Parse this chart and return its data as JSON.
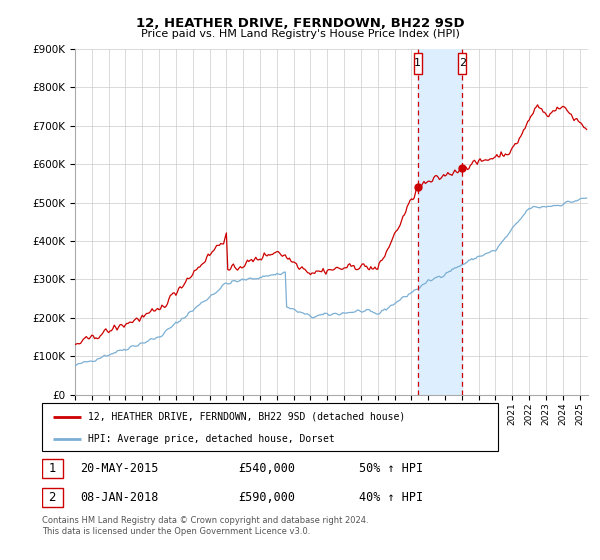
{
  "title": "12, HEATHER DRIVE, FERNDOWN, BH22 9SD",
  "subtitle": "Price paid vs. HM Land Registry's House Price Index (HPI)",
  "ylim": [
    0,
    900000
  ],
  "yticks": [
    0,
    100000,
    200000,
    300000,
    400000,
    500000,
    600000,
    700000,
    800000,
    900000
  ],
  "ytick_labels": [
    "£0",
    "£100K",
    "£200K",
    "£300K",
    "£400K",
    "£500K",
    "£600K",
    "£700K",
    "£800K",
    "£900K"
  ],
  "xlim_start": 1995.0,
  "xlim_end": 2025.5,
  "sale1_year": 2015.38,
  "sale1_price": 540000,
  "sale1_label": "1",
  "sale1_date": "20-MAY-2015",
  "sale1_hpi": "50% ↑ HPI",
  "sale2_year": 2018.02,
  "sale2_price": 590000,
  "sale2_label": "2",
  "sale2_date": "08-JAN-2018",
  "sale2_hpi": "40% ↑ HPI",
  "line1_color": "#cc0000",
  "line2_color": "#7bafd4",
  "shade_color": "#ddeeff",
  "legend1_label": "12, HEATHER DRIVE, FERNDOWN, BH22 9SD (detached house)",
  "legend2_label": "HPI: Average price, detached house, Dorset",
  "footer": "Contains HM Land Registry data © Crown copyright and database right 2024.\nThis data is licensed under the Open Government Licence v3.0."
}
